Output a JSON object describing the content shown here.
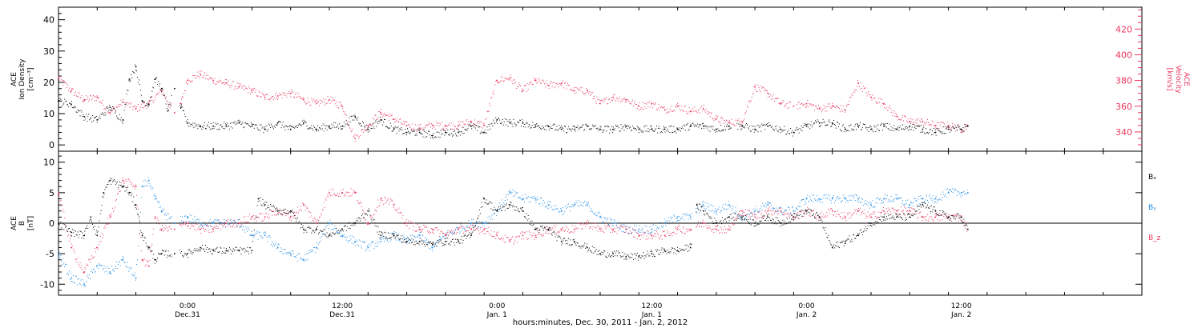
{
  "figure": {
    "xlabel": "hours:minutes, Dec. 30, 2011 - Jan. 2, 2012",
    "xticks": [
      {
        "t": 24,
        "time": "0:00",
        "day": "Dec.31"
      },
      {
        "t": 36,
        "time": "12:00",
        "day": "Dec.31"
      },
      {
        "t": 48,
        "time": "0:00",
        "day": "Jan. 1"
      },
      {
        "t": 60,
        "time": "12:00",
        "day": "Jan. 1"
      },
      {
        "t": 72,
        "time": "0:00",
        "day": "Jan. 2"
      },
      {
        "t": 84,
        "time": "12:00",
        "day": "Jan. 2"
      }
    ],
    "xlim_hours": [
      14,
      98
    ]
  },
  "chart_data": [
    {
      "type": "scatter",
      "panel": "top",
      "ylabel_left": [
        "ACE",
        "Ion Density",
        "[cm⁻³]"
      ],
      "ylabel_right": [
        "ACE",
        "Velocity",
        "[km/s]"
      ],
      "left_ylim": [
        -2,
        44
      ],
      "left_ticks": [
        0,
        10,
        20,
        30,
        40
      ],
      "right_ylim": [
        325,
        437
      ],
      "right_ticks": [
        340,
        360,
        380,
        400,
        420
      ],
      "colors": {
        "density": "#000000",
        "velocity": "#e8365d"
      },
      "series": [
        {
          "key": "density",
          "axis": "left",
          "x": [
            14.0,
            15.0,
            16.0,
            17.0,
            18.0,
            19.0,
            19.5,
            20.0,
            20.5,
            21.0,
            21.5,
            22.0,
            22.5,
            23.0,
            23.5,
            24.0,
            25.0,
            26.0,
            27.0,
            28.0,
            29.0,
            30.0,
            31.0,
            32.0,
            33.0,
            34.0,
            35.0,
            36.0,
            37.0,
            38.0,
            39.0,
            40.0,
            41.0,
            42.0,
            43.0,
            44.0,
            45.0,
            46.0,
            47.0,
            48.0,
            49.0,
            50.0,
            51.0,
            52.0,
            53.0,
            54.0,
            55.0,
            56.0,
            57.0,
            58.0,
            59.0,
            60.0,
            61.0,
            62.0,
            63.0,
            64.0,
            65.0,
            66.0,
            67.0,
            68.0,
            69.0,
            70.0,
            71.0,
            72.0,
            73.0,
            74.0,
            75.0,
            76.0,
            77.0,
            78.0,
            79.0,
            80.0,
            81.0,
            82.0,
            83.0,
            84.0,
            84.5
          ],
          "values": [
            14,
            13,
            9,
            8,
            12,
            8,
            21,
            25,
            14,
            13,
            21,
            18,
            11,
            18,
            12,
            7,
            6,
            6,
            6,
            7,
            6,
            5,
            7,
            5,
            7,
            5,
            6,
            6,
            9,
            5,
            8,
            5,
            4,
            4,
            3,
            4,
            4,
            6,
            4,
            8,
            7,
            7,
            6,
            6,
            5,
            5,
            6,
            5,
            5,
            6,
            5,
            5,
            5,
            5,
            6,
            6,
            5,
            6,
            6,
            5,
            6,
            5,
            4,
            6,
            7,
            7,
            5,
            6,
            5,
            6,
            5,
            6,
            5,
            4,
            5,
            5,
            6
          ]
        },
        {
          "key": "velocity",
          "axis": "right",
          "x": [
            14.0,
            15.0,
            16.0,
            17.0,
            18.0,
            19.0,
            20.0,
            21.0,
            22.0,
            23.0,
            23.5,
            24.0,
            25.0,
            26.0,
            27.0,
            28.0,
            29.0,
            30.0,
            31.0,
            32.0,
            33.0,
            34.0,
            35.0,
            36.0,
            37.0,
            38.0,
            39.0,
            40.0,
            41.0,
            42.0,
            43.0,
            44.0,
            45.0,
            46.0,
            47.0,
            48.0,
            49.0,
            50.0,
            51.0,
            52.0,
            53.0,
            54.0,
            55.0,
            56.0,
            57.0,
            58.0,
            59.0,
            60.0,
            61.0,
            62.0,
            63.0,
            64.0,
            65.0,
            66.0,
            67.0,
            68.0,
            69.0,
            70.0,
            71.0,
            72.0,
            73.0,
            74.0,
            75.0,
            76.0,
            77.0,
            78.0,
            79.0,
            80.0,
            81.0,
            82.0,
            83.0,
            84.0,
            84.5
          ],
          "values": [
            382,
            372,
            365,
            367,
            355,
            363,
            358,
            362,
            372,
            355,
            362,
            380,
            385,
            380,
            378,
            375,
            372,
            367,
            368,
            370,
            365,
            362,
            365,
            360,
            335,
            345,
            355,
            350,
            345,
            343,
            345,
            345,
            345,
            348,
            345,
            380,
            382,
            372,
            380,
            376,
            378,
            372,
            372,
            362,
            367,
            365,
            360,
            362,
            357,
            360,
            356,
            358,
            350,
            347,
            348,
            375,
            370,
            362,
            360,
            362,
            358,
            360,
            357,
            378,
            367,
            362,
            352,
            348,
            348,
            345,
            345,
            342,
            345
          ]
        }
      ]
    },
    {
      "type": "scatter",
      "panel": "bottom",
      "ylabel_left": [
        "ACE",
        "B",
        "[nT]"
      ],
      "ylim": [
        -11.8,
        11.8
      ],
      "ticks": [
        -10,
        -5,
        0,
        5,
        10
      ],
      "zero_line": true,
      "legend": [
        "Bₓ",
        "Bᵧ",
        "B_z"
      ],
      "legend_position": "right",
      "colors": {
        "bx": "#000000",
        "by": "#1e8ce8",
        "bz": "#e8365d"
      },
      "series": [
        {
          "key": "bx",
          "name": "Bₓ",
          "x": [
            14,
            15,
            16,
            16.5,
            17,
            17.5,
            18,
            19,
            19.5,
            20,
            20.5,
            21,
            21.5,
            22,
            23,
            24,
            25,
            26,
            27,
            28,
            29,
            29.5,
            30,
            31,
            32,
            33,
            34,
            35,
            36,
            37,
            38,
            39,
            40,
            41,
            42,
            43,
            44,
            45,
            46,
            47,
            48,
            49,
            50,
            51,
            52,
            53,
            54,
            55,
            56,
            57,
            58,
            59,
            60,
            61,
            62,
            63,
            63.5,
            64,
            65,
            66,
            67,
            68,
            69,
            70,
            71,
            72,
            73,
            74,
            75,
            76,
            77,
            78,
            79,
            80,
            81,
            82,
            83,
            84,
            84.5
          ],
          "values": [
            0,
            -1.5,
            -2,
            1,
            -2,
            5,
            7,
            6,
            5,
            3,
            -2,
            -4,
            -6,
            -5,
            -5,
            -5,
            -4,
            -4.5,
            -4.5,
            -4.5,
            -4.5,
            4,
            3,
            2,
            2,
            -1,
            -1,
            -2,
            -1,
            0,
            2,
            -2,
            -2,
            -3,
            -3,
            -3.5,
            -3,
            -3,
            -2,
            4,
            2,
            3,
            2,
            -1,
            -1,
            -3,
            -3,
            -4,
            -5,
            -5,
            -5.5,
            -5.5,
            -5,
            -4.5,
            -4.5,
            -4,
            3,
            2,
            0,
            1,
            1,
            0,
            1,
            0,
            1,
            2,
            1,
            -4,
            -3,
            -2,
            0,
            1,
            1,
            1,
            3,
            2,
            1,
            1,
            -1
          ]
        },
        {
          "key": "by",
          "name": "Bᵧ",
          "x": [
            14,
            15,
            16,
            17,
            18,
            19,
            20,
            20.5,
            21,
            21.5,
            22,
            23,
            24,
            25,
            26,
            27,
            28,
            29,
            30,
            31,
            32,
            33,
            34,
            35,
            36,
            37,
            38,
            39,
            40,
            41,
            42,
            43,
            44,
            45,
            46,
            47,
            48,
            49,
            50,
            51,
            52,
            53,
            54,
            55,
            56,
            57,
            58,
            59,
            60,
            61,
            62,
            63,
            64,
            65,
            66,
            67,
            68,
            69,
            70,
            71,
            72,
            73,
            74,
            75,
            76,
            77,
            78,
            79,
            80,
            81,
            82,
            83,
            84,
            84.5
          ],
          "values": [
            -5,
            -9,
            -10,
            -7,
            -8,
            -6,
            -9,
            6,
            7,
            4,
            2,
            0,
            1,
            0,
            0,
            0,
            0,
            -2,
            -2,
            -4,
            -5,
            -6,
            -4,
            0,
            -2,
            -3,
            -4,
            -3,
            -2,
            -3,
            -2,
            -4,
            -2,
            -1,
            0,
            0,
            2,
            5,
            4,
            4,
            3,
            2,
            3,
            3,
            1,
            0,
            -1,
            -1,
            -1,
            0,
            1,
            1,
            3,
            2,
            3,
            1,
            2,
            3,
            2,
            2,
            4,
            4,
            4,
            4,
            4,
            3,
            4,
            4,
            3,
            4,
            4,
            5,
            5,
            5
          ]
        },
        {
          "key": "bz",
          "name": "B_z",
          "x": [
            14,
            15,
            16,
            17,
            18,
            19,
            20,
            20.5,
            21,
            21.5,
            22,
            23,
            24,
            25,
            26,
            27,
            28,
            29,
            30,
            31,
            32,
            33,
            34,
            35,
            36,
            37,
            38,
            39,
            40,
            41,
            42,
            43,
            44,
            45,
            46,
            47,
            48,
            49,
            50,
            51,
            52,
            53,
            54,
            55,
            56,
            57,
            58,
            59,
            60,
            61,
            62,
            63,
            64,
            65,
            66,
            67,
            68,
            69,
            70,
            71,
            72,
            73,
            74,
            75,
            76,
            77,
            78,
            79,
            80,
            81,
            82,
            83,
            84,
            84.5
          ],
          "values": [
            5,
            -4,
            -8,
            -4,
            1,
            7,
            6,
            -6,
            -7,
            1,
            -1,
            -1,
            0,
            -1,
            -1,
            0,
            0,
            1,
            1,
            2,
            1,
            3,
            0,
            5,
            5,
            5,
            0,
            4,
            3,
            0,
            -1,
            -1,
            -2,
            -1,
            -1,
            -1,
            -2,
            -3,
            -2,
            -2,
            -1,
            -1,
            -1,
            0,
            -1,
            -1,
            -1,
            -2,
            -2,
            -2,
            -1,
            -1,
            0,
            -1,
            -1,
            2,
            1,
            2,
            2,
            1,
            2,
            1,
            2,
            1,
            2,
            1,
            2,
            2,
            2,
            1,
            1,
            1,
            1,
            -1
          ]
        }
      ]
    }
  ]
}
